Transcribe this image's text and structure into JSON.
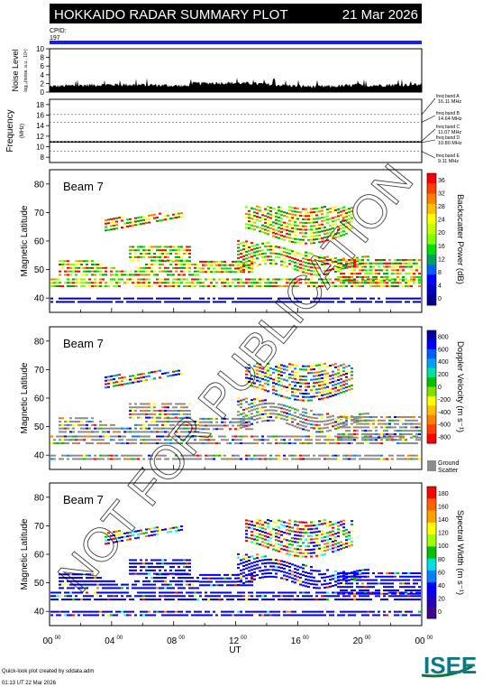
{
  "header": {
    "title": "HOKKAIDO RADAR SUMMARY PLOT",
    "date": "21 Mar 2026",
    "cpid_label": "CPID:",
    "cpid_value": "197"
  },
  "noise_panel": {
    "ylabel": "Noise Level",
    "ylabel_sub": "log₁₀(noise, a.u., 10⁸)",
    "yticks": [
      "10",
      "8",
      "6",
      "4",
      "2",
      "0"
    ]
  },
  "freq_panel": {
    "ylabel": "Frequency",
    "ylabel_unit": "(MHz)",
    "yticks": [
      "18",
      "16",
      "14",
      "12",
      "10",
      "8"
    ],
    "bands": [
      {
        "label": "freq band A",
        "value": "16.11 MHz",
        "freq": 16.11
      },
      {
        "label": "freq band B",
        "value": "14.64 MHz",
        "freq": 14.64
      },
      {
        "label": "freq band C",
        "value": "11.07 MHz",
        "freq": 11.07
      },
      {
        "label": "freq band D",
        "value": "10.80 MHz",
        "freq": 10.8
      },
      {
        "label": "freq band E",
        "value": "9.11 MHz",
        "freq": 9.11
      }
    ]
  },
  "panels": [
    {
      "beam_label": "Beam  7",
      "ylabel": "Magnetic Latitude",
      "yticks": [
        "80",
        "70",
        "60",
        "50",
        "40"
      ],
      "cbar_label": "Backscatter Power (dB)",
      "cbar_ticks": [
        "36",
        "32",
        "28",
        "24",
        "20",
        "16",
        "12",
        "8",
        "4",
        "0"
      ],
      "colors": [
        "#ff0000",
        "#ff7f00",
        "#ffff00",
        "#80ff00",
        "#00e000",
        "#00a000",
        "#0000ff",
        "#0000a0"
      ]
    },
    {
      "beam_label": "Beam  7",
      "ylabel": "Magnetic Latitude",
      "yticks": [
        "80",
        "70",
        "60",
        "50",
        "40"
      ],
      "cbar_label": "Doppler Velocity (m s⁻¹)",
      "cbar_ticks": [
        "800",
        "600",
        "400",
        "200",
        "0",
        "-200",
        "-400",
        "-600",
        "-800"
      ],
      "ground_label": "Ground",
      "scatter_label": "Scatter",
      "colors": [
        "#0000ff",
        "#0080ff",
        "#00c000",
        "#ffff00",
        "#ff8000",
        "#ff0000",
        "#8c8c8c"
      ]
    },
    {
      "beam_label": "Beam  7",
      "ylabel": "Magnetic Latitude",
      "yticks": [
        "80",
        "70",
        "60",
        "50",
        "40"
      ],
      "cbar_label": "Spectral Width (m s⁻¹)",
      "cbar_ticks": [
        "180",
        "160",
        "140",
        "120",
        "100",
        "80",
        "60",
        "40",
        "20",
        "0"
      ],
      "colors": [
        "#ff0000",
        "#ff8000",
        "#ffff00",
        "#00c000",
        "#00ffff",
        "#0000ff",
        "#4000c0"
      ]
    }
  ],
  "time_axis": {
    "label": "UT",
    "ticks": [
      {
        "h": "00",
        "m": "00"
      },
      {
        "h": "04",
        "m": "00"
      },
      {
        "h": "08",
        "m": "00"
      },
      {
        "h": "12",
        "m": "00"
      },
      {
        "h": "16",
        "m": "00"
      },
      {
        "h": "20",
        "m": "00"
      },
      {
        "h": "00",
        "m": "00"
      }
    ]
  },
  "watermark": "NOT FOR PUBLICATION",
  "footer": {
    "line1": "Quick-look plot created by sddata.adm",
    "line2": "01:13 UT 22 Mar 2026",
    "logo": "ISEE"
  },
  "chart_data": [
    {
      "type": "heatmap",
      "title": "Beam  7",
      "xlabel": "UT",
      "ylabel": "Magnetic Latitude",
      "xlim": [
        0,
        24
      ],
      "ylim": [
        35,
        85
      ],
      "colorbar": "Backscatter Power (dB)",
      "crange": [
        0,
        38
      ]
    },
    {
      "type": "heatmap",
      "title": "Beam  7",
      "xlabel": "UT",
      "ylabel": "Magnetic Latitude",
      "xlim": [
        0,
        24
      ],
      "ylim": [
        35,
        85
      ],
      "colorbar": "Doppler Velocity (m s⁻¹)",
      "crange": [
        -900,
        900
      ]
    },
    {
      "type": "heatmap",
      "title": "Beam  7",
      "xlabel": "UT",
      "ylabel": "Magnetic Latitude",
      "xlim": [
        0,
        24
      ],
      "ylim": [
        35,
        85
      ],
      "colorbar": "Spectral Width (m s⁻¹)",
      "crange": [
        0,
        190
      ]
    }
  ]
}
